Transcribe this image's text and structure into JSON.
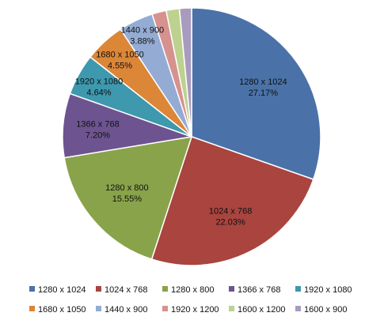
{
  "chart_data": {
    "type": "pie",
    "title": "",
    "legend_position": "bottom",
    "start_angle_deg": 0,
    "direction": "clockwise",
    "slices": [
      {
        "label": "1280 x 1024",
        "percent": 27.17,
        "percent_text": "27.17%",
        "color": "#4A72A8",
        "show_label": true
      },
      {
        "label": "1024 x 768",
        "percent": 22.03,
        "percent_text": "22.03%",
        "color": "#A9443F",
        "show_label": true
      },
      {
        "label": "1280 x 800",
        "percent": 15.55,
        "percent_text": "15.55%",
        "color": "#89A34A",
        "show_label": true
      },
      {
        "label": "1366 x 768",
        "percent": 7.2,
        "percent_text": "7.20%",
        "color": "#6D5490",
        "show_label": true
      },
      {
        "label": "1920 x 1080",
        "percent": 4.64,
        "percent_text": "4.64%",
        "color": "#3E98AE",
        "show_label": true
      },
      {
        "label": "1680 x 1050",
        "percent": 4.55,
        "percent_text": "4.55%",
        "color": "#DC8638",
        "show_label": true
      },
      {
        "label": "1440 x 900",
        "percent": 3.88,
        "percent_text": "3.88%",
        "color": "#94ACD4",
        "show_label": true
      },
      {
        "label": "1920 x 1200",
        "percent": 1.6,
        "percent_text": "",
        "color": "#D6928F",
        "show_label": false
      },
      {
        "label": "1600 x 1200",
        "percent": 1.48,
        "percent_text": "",
        "color": "#BDD28E",
        "show_label": false
      },
      {
        "label": "1600 x 900",
        "percent": 1.35,
        "percent_text": "",
        "color": "#A99BBE",
        "show_label": false
      }
    ]
  }
}
